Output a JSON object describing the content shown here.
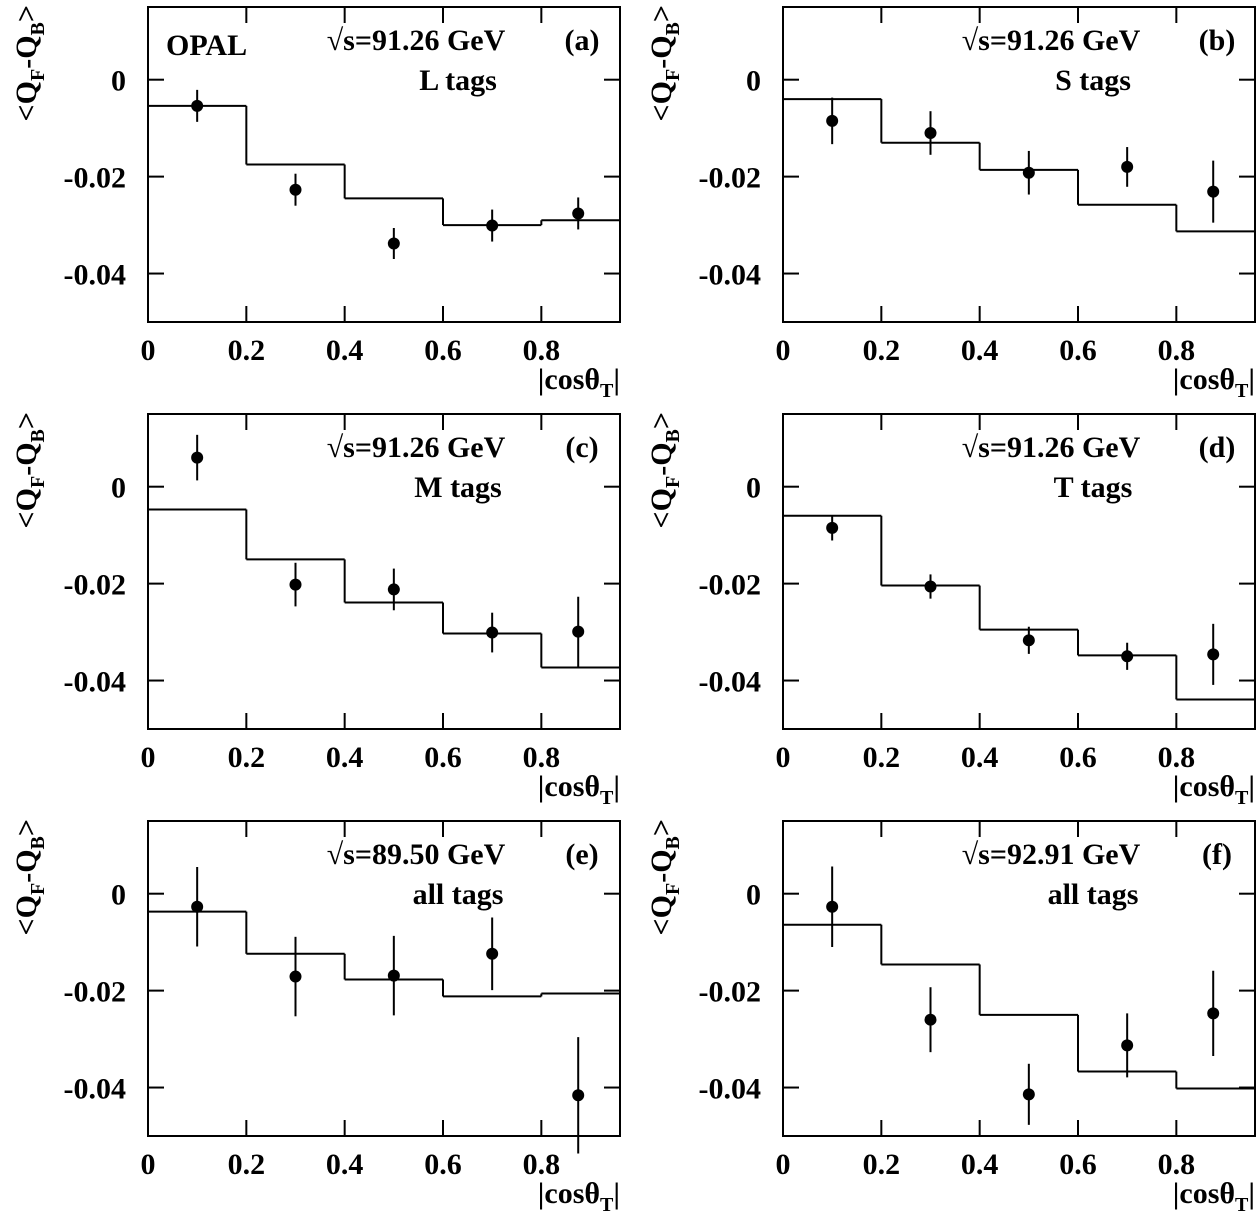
{
  "chart_data": [
    {
      "type": "scatter",
      "title": "OPAL",
      "energy": "√s=91.26 GeV",
      "panel": "(a)",
      "tags": "L tags",
      "x_label": [
        "|cosθ",
        "T",
        "|"
      ],
      "y_label": [
        "<Q",
        "F",
        "-Q",
        "B",
        ">"
      ],
      "x": [
        0.1,
        0.3,
        0.5,
        0.7,
        0.875
      ],
      "values": [
        -0.0054,
        -0.0227,
        -0.0338,
        -0.0301,
        -0.0276
      ],
      "errors": [
        0.0033,
        0.0033,
        0.0032,
        0.0033,
        0.0033
      ],
      "step": {
        "bins": [
          0,
          0.2,
          0.4,
          0.6,
          0.8,
          0.96
        ],
        "values": [
          -0.0054,
          -0.0175,
          -0.0245,
          -0.03,
          -0.029
        ]
      },
      "xlim": [
        0,
        0.96
      ],
      "ylim": [
        -0.05,
        0.015
      ],
      "xticks": [
        0,
        0.2,
        0.4,
        0.6,
        0.8
      ],
      "yticks": [
        -0.04,
        -0.02,
        0
      ],
      "color": "#000000"
    },
    {
      "type": "scatter",
      "energy": "√s=91.26 GeV",
      "panel": "(b)",
      "tags": "S tags",
      "x_label": [
        "|cosθ",
        "T",
        "|"
      ],
      "y_label": [
        "<Q",
        "F",
        "-Q",
        "B",
        ">"
      ],
      "x": [
        0.1,
        0.3,
        0.5,
        0.7,
        0.875
      ],
      "values": [
        -0.0085,
        -0.011,
        -0.0192,
        -0.018,
        -0.0231
      ],
      "errors": [
        0.0048,
        0.0045,
        0.0045,
        0.0041,
        0.0064
      ],
      "step": {
        "bins": [
          0,
          0.2,
          0.4,
          0.6,
          0.8,
          0.96
        ],
        "values": [
          -0.004,
          -0.013,
          -0.0186,
          -0.0258,
          -0.0313
        ]
      },
      "xlim": [
        0,
        0.96
      ],
      "ylim": [
        -0.05,
        0.015
      ],
      "xticks": [
        0,
        0.2,
        0.4,
        0.6,
        0.8
      ],
      "yticks": [
        -0.04,
        -0.02,
        0
      ],
      "color": "#000000"
    },
    {
      "type": "scatter",
      "energy": "√s=91.26 GeV",
      "panel": "(c)",
      "tags": "M tags",
      "x_label": [
        "|cosθ",
        "T",
        "|"
      ],
      "y_label": [
        "<Q",
        "F",
        "-Q",
        "B",
        ">"
      ],
      "x": [
        0.1,
        0.3,
        0.5,
        0.7,
        0.875
      ],
      "values": [
        0.006,
        -0.0202,
        -0.0212,
        -0.0301,
        -0.0299
      ],
      "errors": [
        0.0047,
        0.0045,
        0.0043,
        0.0041,
        0.0072
      ],
      "step": {
        "bins": [
          0,
          0.2,
          0.4,
          0.6,
          0.8,
          0.96
        ],
        "values": [
          -0.0047,
          -0.015,
          -0.0239,
          -0.0303,
          -0.0373
        ]
      },
      "xlim": [
        0,
        0.96
      ],
      "ylim": [
        -0.05,
        0.015
      ],
      "xticks": [
        0,
        0.2,
        0.4,
        0.6,
        0.8
      ],
      "yticks": [
        -0.04,
        -0.02,
        0
      ],
      "color": "#000000"
    },
    {
      "type": "scatter",
      "energy": "√s=91.26 GeV",
      "panel": "(d)",
      "tags": "T tags",
      "x_label": [
        "|cosθ",
        "T",
        "|"
      ],
      "y_label": [
        "<Q",
        "F",
        "-Q",
        "B",
        ">"
      ],
      "x": [
        0.1,
        0.3,
        0.5,
        0.7,
        0.875
      ],
      "values": [
        -0.0085,
        -0.0206,
        -0.0317,
        -0.035,
        -0.0346
      ],
      "errors": [
        0.0026,
        0.0025,
        0.0028,
        0.0028,
        0.0063
      ],
      "step": {
        "bins": [
          0,
          0.2,
          0.4,
          0.6,
          0.8,
          0.96
        ],
        "values": [
          -0.006,
          -0.0204,
          -0.0295,
          -0.0348,
          -0.0439
        ]
      },
      "xlim": [
        0,
        0.96
      ],
      "ylim": [
        -0.05,
        0.015
      ],
      "xticks": [
        0,
        0.2,
        0.4,
        0.6,
        0.8
      ],
      "yticks": [
        -0.04,
        -0.02,
        0
      ],
      "color": "#000000"
    },
    {
      "type": "scatter",
      "energy": "√s=89.50 GeV",
      "panel": "(e)",
      "tags": "all tags",
      "x_label": [
        "|cosθ",
        "T",
        "|"
      ],
      "y_label": [
        "<Q",
        "F",
        "-Q",
        "B",
        ">"
      ],
      "x": [
        0.1,
        0.3,
        0.5,
        0.7,
        0.875
      ],
      "values": [
        -0.0027,
        -0.0171,
        -0.0169,
        -0.0124,
        -0.0416
      ],
      "errors": [
        0.0082,
        0.0082,
        0.0082,
        0.0075,
        0.012
      ],
      "step": {
        "bins": [
          0,
          0.2,
          0.4,
          0.6,
          0.8,
          0.96
        ],
        "values": [
          -0.0037,
          -0.0124,
          -0.0177,
          -0.0212,
          -0.0206
        ]
      },
      "xlim": [
        0,
        0.96
      ],
      "ylim": [
        -0.05,
        0.015
      ],
      "xticks": [
        0,
        0.2,
        0.4,
        0.6,
        0.8
      ],
      "yticks": [
        -0.04,
        -0.02,
        0
      ],
      "color": "#000000"
    },
    {
      "type": "scatter",
      "energy": "√s=92.91 GeV",
      "panel": "(f)",
      "tags": "all tags",
      "x_label": [
        "|cosθ",
        "T",
        "|"
      ],
      "y_label": [
        "<Q",
        "F",
        "-Q",
        "B",
        ">"
      ],
      "x": [
        0.1,
        0.3,
        0.5,
        0.7,
        0.875
      ],
      "values": [
        -0.0027,
        -0.026,
        -0.0414,
        -0.0313,
        -0.0247
      ],
      "errors": [
        0.0083,
        0.0067,
        0.0063,
        0.0066,
        0.0088
      ],
      "step": {
        "bins": [
          0,
          0.2,
          0.4,
          0.6,
          0.8,
          0.96
        ],
        "values": [
          -0.0064,
          -0.0146,
          -0.025,
          -0.0367,
          -0.0402
        ]
      },
      "xlim": [
        0,
        0.96
      ],
      "ylim": [
        -0.05,
        0.015
      ],
      "xticks": [
        0,
        0.2,
        0.4,
        0.6,
        0.8
      ],
      "yticks": [
        -0.04,
        -0.02,
        0
      ],
      "color": "#000000"
    }
  ]
}
